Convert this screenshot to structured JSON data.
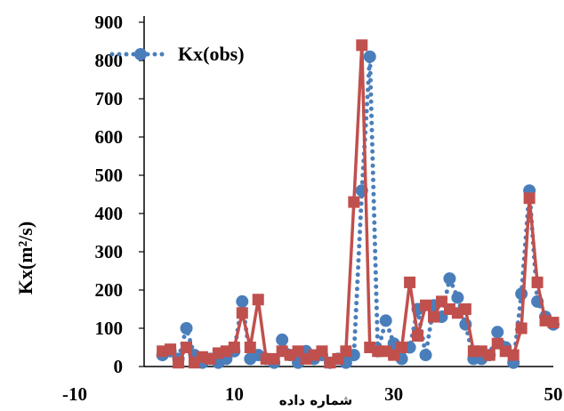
{
  "chart_data": {
    "type": "line",
    "title": "",
    "xlabel": "شماره داده",
    "ylabel": "Kx(m²/s)",
    "xlim": [
      -10,
      50
    ],
    "ylim": [
      0,
      900
    ],
    "xticks": [
      "-10",
      "10",
      "30",
      "50"
    ],
    "xtick_values": [
      -10,
      10,
      30,
      50
    ],
    "yticks": [
      "0",
      "100",
      "200",
      "300",
      "400",
      "500",
      "600",
      "700",
      "800",
      "900"
    ],
    "ytick_values": [
      0,
      100,
      200,
      300,
      400,
      500,
      600,
      700,
      800,
      900
    ],
    "grid": false,
    "legend_position": "top-left",
    "series": [
      {
        "name": "Kx(obs)",
        "style": "dotted-circles",
        "color": "#4a7ebb",
        "x": [
          1,
          2,
          3,
          4,
          5,
          6,
          7,
          8,
          9,
          10,
          11,
          12,
          13,
          14,
          15,
          16,
          17,
          18,
          19,
          20,
          21,
          22,
          23,
          24,
          25,
          26,
          27,
          28,
          29,
          30,
          31,
          32,
          33,
          34,
          35,
          36,
          37,
          38,
          39,
          40,
          41,
          42,
          43,
          44,
          45,
          46,
          47,
          48,
          49,
          50
        ],
        "y": [
          30,
          40,
          20,
          100,
          30,
          10,
          20,
          10,
          20,
          40,
          170,
          20,
          30,
          20,
          10,
          70,
          30,
          10,
          40,
          20,
          30,
          10,
          20,
          10,
          30,
          460,
          810,
          40,
          120,
          60,
          20,
          50,
          150,
          30,
          160,
          130,
          230,
          180,
          110,
          20,
          20,
          30,
          90,
          50,
          10,
          190,
          460,
          170,
          130,
          110
        ]
      },
      {
        "name": "",
        "style": "solid-squares",
        "color": "#c0504d",
        "x": [
          1,
          2,
          3,
          4,
          5,
          6,
          7,
          8,
          9,
          10,
          11,
          12,
          13,
          14,
          15,
          16,
          17,
          18,
          19,
          20,
          21,
          22,
          23,
          24,
          25,
          26,
          27,
          28,
          29,
          30,
          31,
          32,
          33,
          34,
          35,
          36,
          37,
          38,
          39,
          40,
          41,
          42,
          43,
          44,
          45,
          46,
          47,
          48,
          49,
          50
        ],
        "y": [
          40,
          45,
          10,
          50,
          10,
          25,
          20,
          35,
          40,
          50,
          140,
          50,
          175,
          20,
          20,
          40,
          30,
          40,
          20,
          30,
          40,
          10,
          20,
          40,
          430,
          840,
          50,
          40,
          40,
          30,
          50,
          220,
          80,
          160,
          130,
          170,
          150,
          140,
          150,
          40,
          40,
          30,
          60,
          40,
          30,
          100,
          440,
          220,
          120,
          115
        ]
      }
    ]
  }
}
